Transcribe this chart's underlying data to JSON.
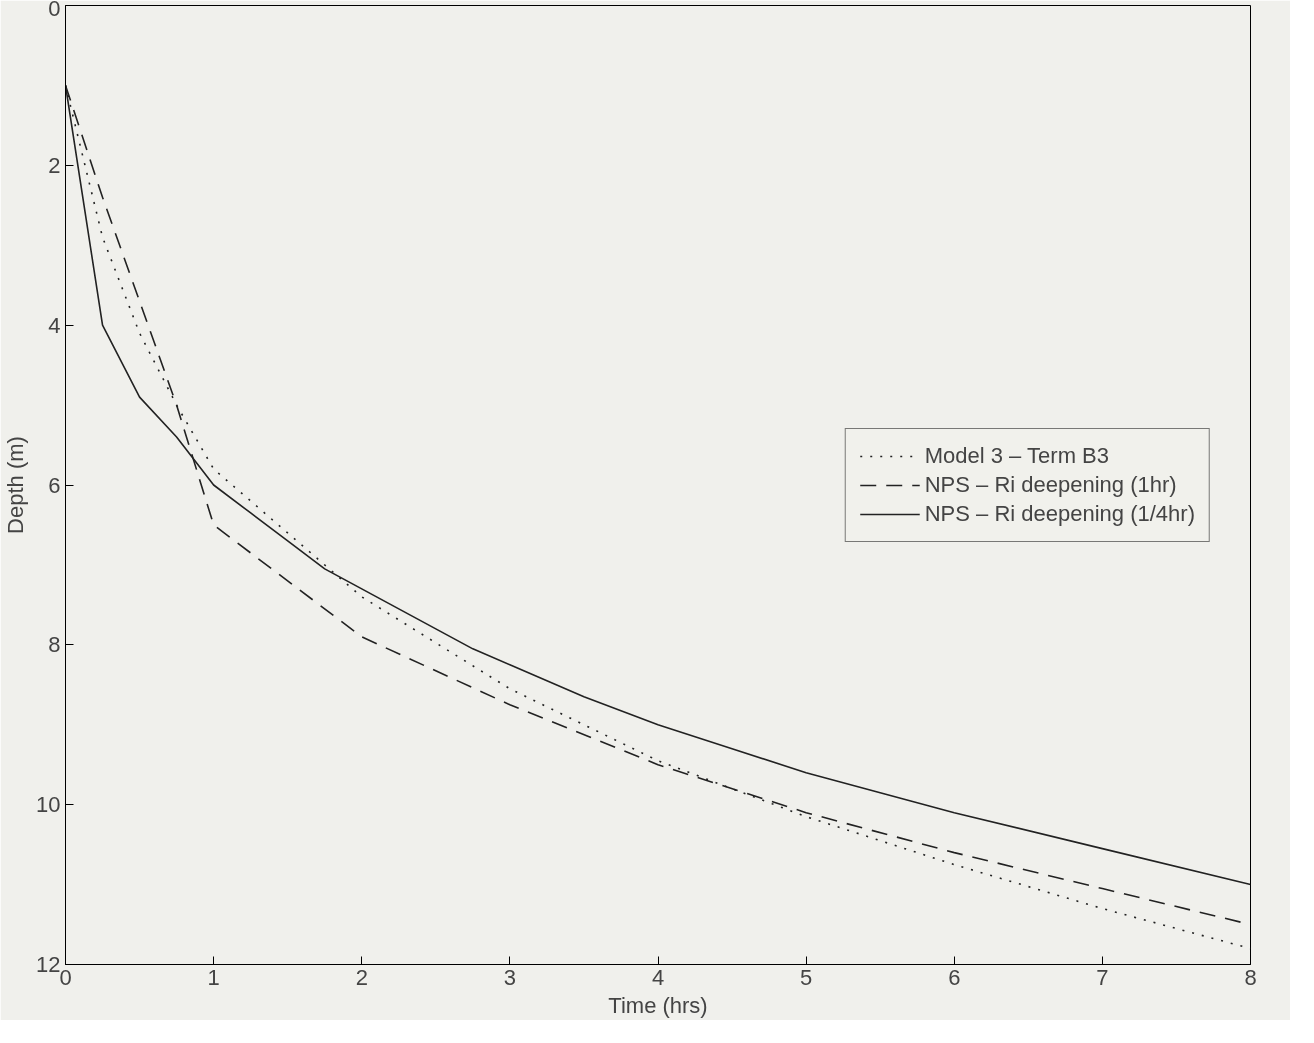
{
  "chart_data": {
    "type": "line",
    "xlabel": "Time (hrs)",
    "ylabel": "Depth (m)",
    "xlim": [
      0,
      8
    ],
    "ylim": [
      12,
      0
    ],
    "xticks": [
      0,
      1,
      2,
      3,
      4,
      5,
      6,
      7,
      8
    ],
    "yticks": [
      0,
      2,
      4,
      6,
      8,
      10,
      12
    ],
    "grid": false,
    "legend": "right",
    "series": [
      {
        "name": "Model 3 – Term B3",
        "color": "#222222",
        "line_style": "dotted",
        "x": [
          0,
          0.25,
          0.5,
          0.75,
          1,
          1.5,
          2,
          3,
          4,
          5,
          6,
          7,
          8
        ],
        "values": [
          1,
          2.9,
          4.1,
          5.0,
          5.8,
          6.6,
          7.4,
          8.55,
          9.45,
          10.15,
          10.75,
          11.3,
          11.8
        ]
      },
      {
        "name": "NPS – Ri deepening (1hr)",
        "color": "#222222",
        "line_style": "dashed",
        "x": [
          0,
          0.25,
          0.5,
          0.75,
          0.95,
          1,
          2,
          3,
          4,
          5,
          6,
          7,
          8
        ],
        "values": [
          1,
          2.4,
          3.7,
          5.0,
          6.2,
          6.5,
          7.9,
          8.75,
          9.5,
          10.1,
          10.6,
          11.05,
          11.5
        ]
      },
      {
        "name": "NPS – Ri deepening (1/4hr)",
        "color": "#222222",
        "line_style": "solid",
        "x": [
          0,
          0.25,
          0.5,
          0.75,
          1,
          1.25,
          1.5,
          1.75,
          2,
          2.5,
          2.75,
          3,
          3.5,
          4,
          4.5,
          5,
          5.5,
          6,
          7,
          8
        ],
        "values": [
          1,
          4,
          4.9,
          5.4,
          6.0,
          6.35,
          6.7,
          7.05,
          7.3,
          7.8,
          8.05,
          8.25,
          8.65,
          9.0,
          9.3,
          9.6,
          9.85,
          10.1,
          10.55,
          11.0
        ]
      }
    ]
  }
}
